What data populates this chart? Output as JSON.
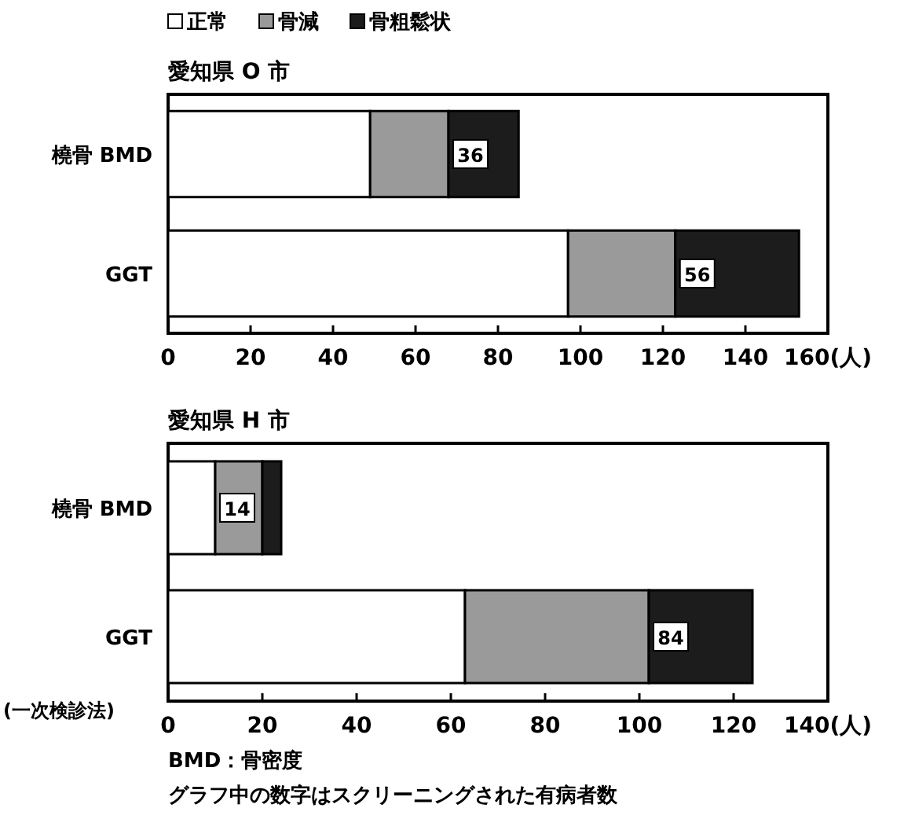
{
  "chart_data": [
    {
      "type": "bar",
      "orientation": "horizontal",
      "stacked": true,
      "title": "愛知県 O 市",
      "categories": [
        "橈骨 BMD",
        "GGT"
      ],
      "series": [
        {
          "name": "正常",
          "color": "#ffffff",
          "values": [
            49,
            97
          ]
        },
        {
          "name": "骨減",
          "color": "#9a9a9a",
          "values": [
            19,
            26
          ]
        },
        {
          "name": "骨粗鬆状",
          "color": "#1c1c1c",
          "values": [
            17,
            30
          ]
        }
      ],
      "xlim": [
        0,
        160
      ],
      "xticks": [
        0,
        20,
        40,
        60,
        80,
        100,
        120,
        140,
        {
          "value": 160,
          "label": "160(人)"
        }
      ],
      "legend": "top",
      "grid": false,
      "annotations": [
        {
          "text": "36",
          "x": 68,
          "y": "橈骨 BMD"
        },
        {
          "text": "56",
          "x": 123,
          "y": "GGT"
        }
      ]
    },
    {
      "type": "bar",
      "orientation": "horizontal",
      "stacked": true,
      "title": "愛知県 H 市",
      "categories": [
        "橈骨 BMD",
        "GGT"
      ],
      "series": [
        {
          "color": "#ffffff",
          "values": [
            10,
            63
          ]
        },
        {
          "color": "#9a9a9a",
          "values": [
            10,
            39
          ]
        },
        {
          "color": "#1c1c1c",
          "values": [
            4,
            22
          ]
        }
      ],
      "xlim": [
        0,
        140
      ],
      "xticks": [
        0,
        20,
        40,
        60,
        80,
        100,
        120,
        {
          "value": 140,
          "label": "140(人)"
        }
      ],
      "grid": false,
      "annotations": [
        {
          "text": "14",
          "x": 10,
          "y": "橈骨 BMD"
        },
        {
          "text": "84",
          "x": 102,
          "y": "GGT"
        },
        "(一次検診法)",
        "BMD：骨密度",
        "グラフ中の数字はスクリーニングされた有病者数"
      ]
    }
  ]
}
